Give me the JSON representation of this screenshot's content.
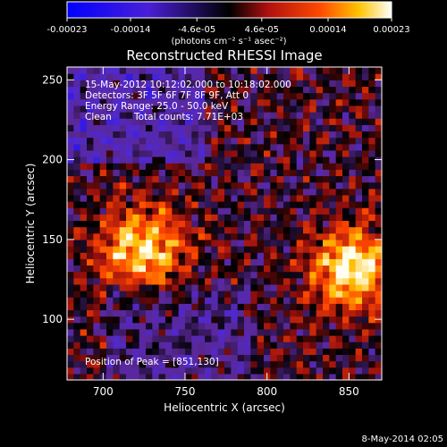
{
  "chart_data": {
    "type": "heatmap",
    "title": "Reconstructed RHESSI Image",
    "xlabel": "Heliocentric X (arcsec)",
    "ylabel": "Heliocentric Y (arcsec)",
    "xlim": [
      678,
      870
    ],
    "ylim": [
      62,
      258
    ],
    "x_ticks": [
      "700",
      "750",
      "800",
      "850"
    ],
    "y_ticks": [
      "100",
      "150",
      "200",
      "250"
    ],
    "colorbar": {
      "ticks": [
        "-0.00023",
        "-0.00014",
        "-4.6e-05",
        "4.6e-05",
        "0.00014",
        "0.00023"
      ],
      "range": [
        -0.00023,
        0.00023
      ],
      "unit_label": "(photons cm⁻² s⁻¹ asec⁻²)"
    },
    "info": {
      "time_range": "15-May-2012 10:12:02.000 to 10:18:02.000",
      "detectors": "Detectors: 3F 5F 6F 7F 8F 9F, Att 0",
      "energy_range": "Energy Range: 25.0 - 50.0 keV",
      "method": "Clean",
      "total_counts": "Total counts: 7.71E+03",
      "peak": "Position of Peak = [851,130]"
    },
    "peak": {
      "x": 851,
      "y": 130
    },
    "sources": [
      {
        "x": 851,
        "y": 130,
        "peak": 0.00023
      },
      {
        "x": 722,
        "y": 142,
        "peak": 0.00021
      }
    ]
  },
  "footer": {
    "timestamp": "8-May-2014 02:05"
  }
}
